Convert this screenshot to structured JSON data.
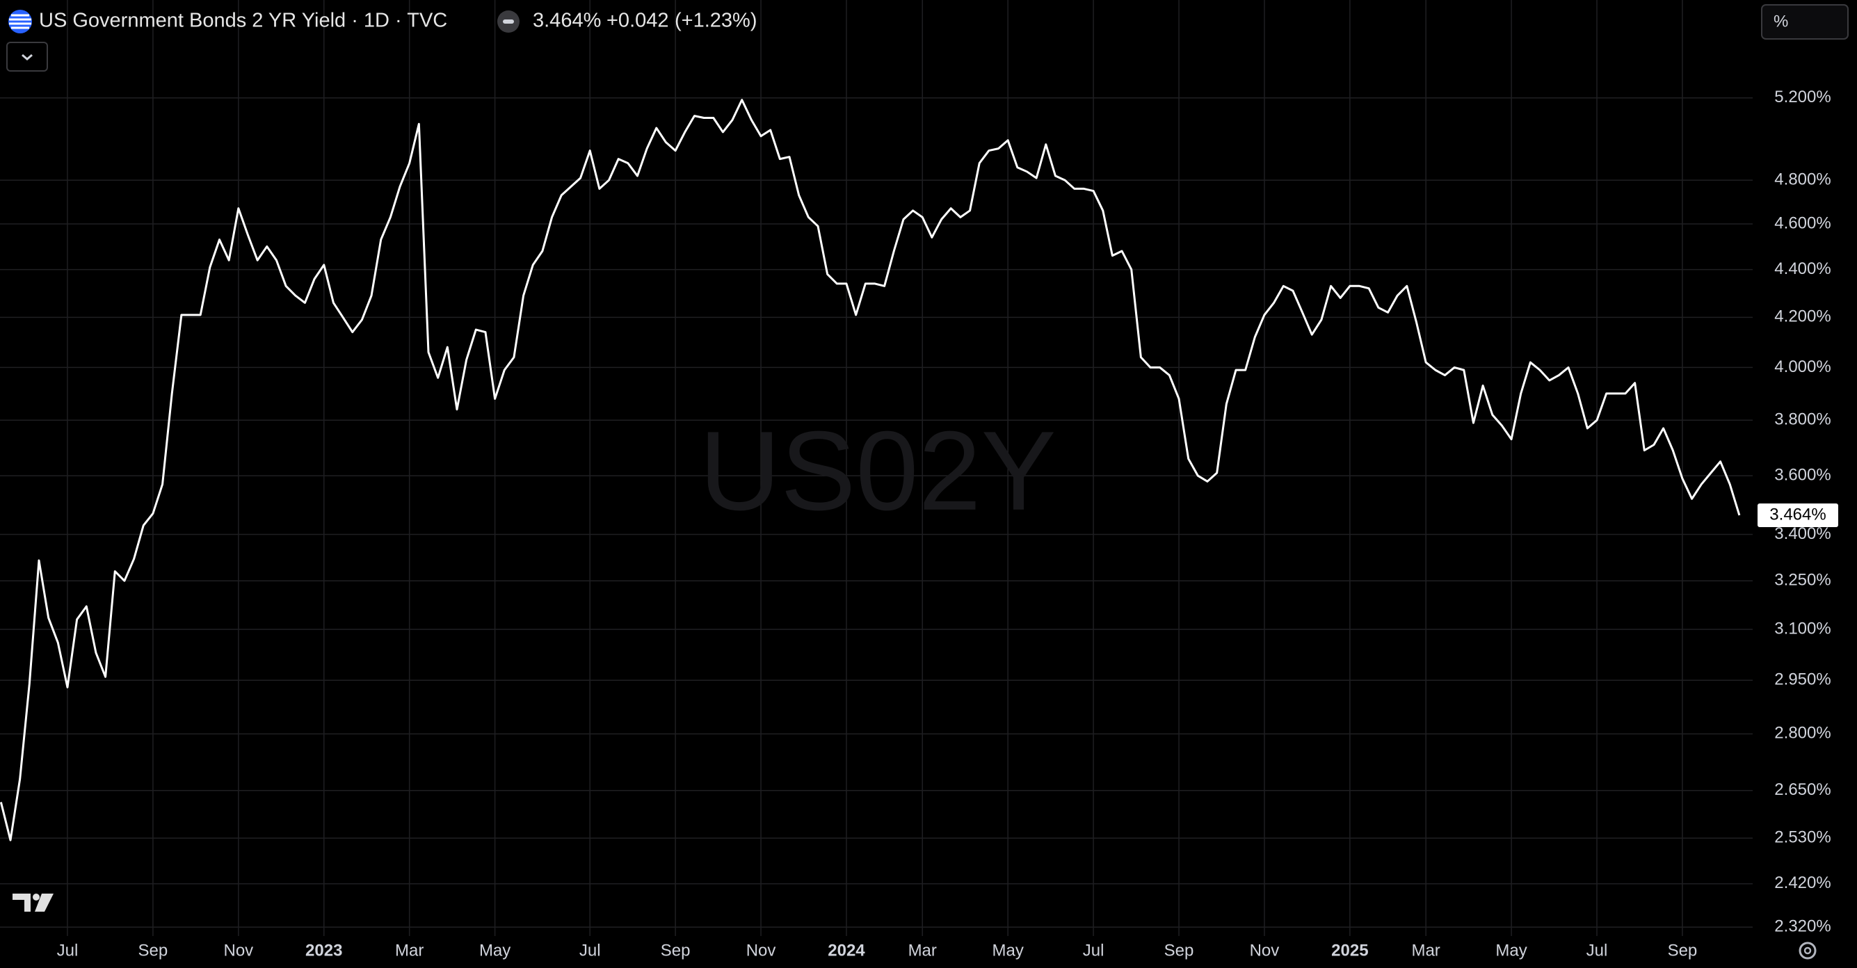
{
  "header": {
    "title": "US Government Bonds 2 YR Yield · 1D · TVC",
    "price": "3.464%",
    "change": "+0.042",
    "change_pct": "(+1.23%)",
    "unit_button": "%"
  },
  "chart_data": {
    "type": "line",
    "watermark": "US02Y",
    "log_scale": true,
    "grid": true,
    "color": "#ffffff",
    "categories": [
      null,
      null,
      null,
      null,
      null,
      null,
      null,
      "Jul",
      null,
      null,
      null,
      null,
      null,
      null,
      null,
      null,
      "Sep",
      null,
      null,
      null,
      null,
      null,
      null,
      null,
      null,
      "Nov",
      null,
      null,
      null,
      null,
      null,
      null,
      null,
      null,
      "2023",
      null,
      null,
      null,
      null,
      null,
      null,
      null,
      null,
      "Mar",
      null,
      null,
      null,
      null,
      null,
      null,
      null,
      null,
      "May",
      null,
      null,
      null,
      null,
      null,
      null,
      null,
      null,
      null,
      "Jul",
      null,
      null,
      null,
      null,
      null,
      null,
      null,
      null,
      "Sep",
      null,
      null,
      null,
      null,
      null,
      null,
      null,
      null,
      "Nov",
      null,
      null,
      null,
      null,
      null,
      null,
      null,
      null,
      "2024",
      null,
      null,
      null,
      null,
      null,
      null,
      null,
      "Mar",
      null,
      null,
      null,
      null,
      null,
      null,
      null,
      null,
      "May",
      null,
      null,
      null,
      null,
      null,
      null,
      null,
      null,
      "Jul",
      null,
      null,
      null,
      null,
      null,
      null,
      null,
      null,
      "Sep",
      null,
      null,
      null,
      null,
      null,
      null,
      null,
      null,
      "Nov",
      null,
      null,
      null,
      null,
      null,
      null,
      null,
      null,
      "2025",
      null,
      null,
      null,
      null,
      null,
      null,
      null,
      "Mar",
      null,
      null,
      null,
      null,
      null,
      null,
      null,
      null,
      "May",
      null,
      null,
      null,
      null,
      null,
      null,
      null,
      null,
      "Jul",
      null,
      null,
      null,
      null,
      null,
      null,
      null,
      null,
      "Sep",
      null,
      null,
      null,
      null,
      null,
      null
    ],
    "values": [
      2.62,
      2.525,
      2.68,
      2.94,
      3.315,
      3.135,
      3.06,
      2.93,
      3.13,
      3.17,
      3.03,
      2.96,
      3.28,
      3.25,
      3.32,
      3.43,
      3.47,
      3.57,
      3.9,
      4.21,
      4.21,
      4.21,
      4.41,
      4.53,
      4.44,
      4.67,
      4.55,
      4.44,
      4.5,
      4.44,
      4.33,
      4.29,
      4.26,
      4.36,
      4.42,
      4.26,
      4.2,
      4.14,
      4.19,
      4.29,
      4.53,
      4.63,
      4.77,
      4.88,
      5.07,
      4.06,
      3.96,
      4.08,
      3.84,
      4.03,
      4.15,
      4.14,
      3.88,
      3.99,
      4.04,
      4.29,
      4.42,
      4.48,
      4.63,
      4.73,
      4.77,
      4.81,
      4.94,
      4.76,
      4.8,
      4.9,
      4.88,
      4.82,
      4.95,
      5.05,
      4.98,
      4.94,
      5.03,
      5.11,
      5.1,
      5.1,
      5.03,
      5.09,
      5.19,
      5.09,
      5.01,
      5.04,
      4.9,
      4.91,
      4.73,
      4.63,
      4.59,
      4.38,
      4.34,
      4.34,
      4.21,
      4.34,
      4.34,
      4.33,
      4.48,
      4.62,
      4.66,
      4.63,
      4.54,
      4.62,
      4.67,
      4.63,
      4.66,
      4.88,
      4.94,
      4.95,
      4.99,
      4.86,
      4.84,
      4.81,
      4.97,
      4.82,
      4.8,
      4.76,
      4.76,
      4.75,
      4.66,
      4.46,
      4.48,
      4.4,
      4.04,
      4.0,
      4.0,
      3.97,
      3.88,
      3.66,
      3.6,
      3.58,
      3.61,
      3.86,
      3.99,
      3.99,
      4.12,
      4.21,
      4.26,
      4.33,
      4.31,
      4.22,
      4.13,
      4.19,
      4.33,
      4.28,
      4.33,
      4.33,
      4.32,
      4.24,
      4.22,
      4.29,
      4.33,
      4.18,
      4.02,
      3.99,
      3.97,
      4.0,
      3.99,
      3.79,
      3.93,
      3.82,
      3.78,
      3.73,
      3.9,
      4.02,
      3.99,
      3.95,
      3.97,
      4.0,
      3.9,
      3.77,
      3.8,
      3.9,
      3.9,
      3.9,
      3.94,
      3.69,
      3.71,
      3.77,
      3.69,
      3.59,
      3.52,
      3.57,
      3.61,
      3.65,
      3.57,
      3.464
    ],
    "price_tag": {
      "value": 3.464,
      "label": "3.464%"
    },
    "ylim": [
      2.3,
      5.72
    ],
    "yticks": [
      {
        "value": 2.32,
        "label": "2.320%"
      },
      {
        "value": 2.42,
        "label": "2.420%"
      },
      {
        "value": 2.53,
        "label": "2.530%"
      },
      {
        "value": 2.65,
        "label": "2.650%"
      },
      {
        "value": 2.8,
        "label": "2.800%"
      },
      {
        "value": 2.95,
        "label": "2.950%"
      },
      {
        "value": 3.1,
        "label": "3.100%"
      },
      {
        "value": 3.25,
        "label": "3.250%"
      },
      {
        "value": 3.4,
        "label": "3.400%"
      },
      {
        "value": 3.6,
        "label": "3.600%"
      },
      {
        "value": 3.8,
        "label": "3.800%"
      },
      {
        "value": 4.0,
        "label": "4.000%"
      },
      {
        "value": 4.2,
        "label": "4.200%"
      },
      {
        "value": 4.4,
        "label": "4.400%"
      },
      {
        "value": 4.6,
        "label": "4.600%"
      },
      {
        "value": 4.8,
        "label": "4.800%"
      },
      {
        "value": 5.2,
        "label": "5.200%"
      }
    ]
  }
}
